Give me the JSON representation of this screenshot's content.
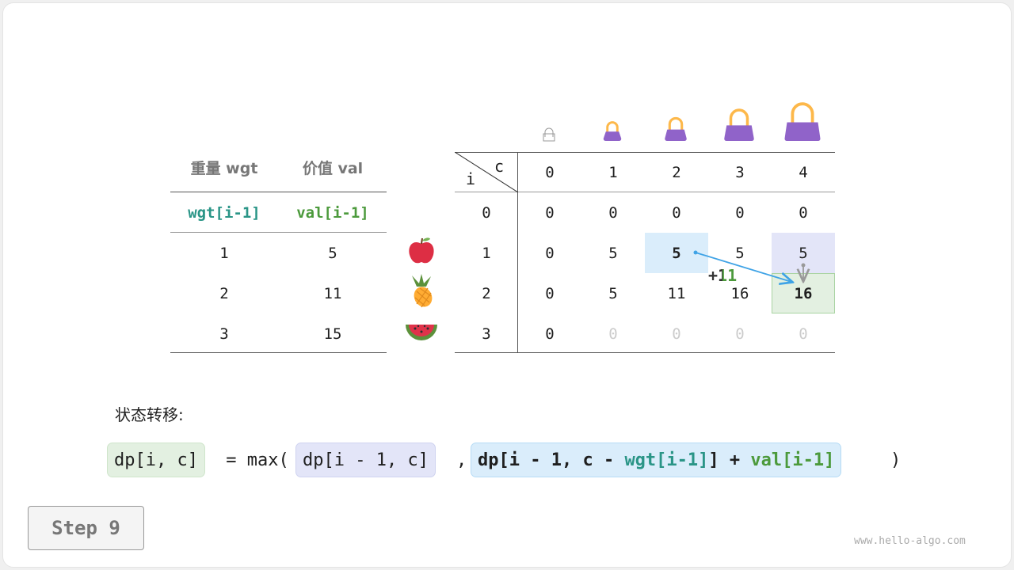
{
  "left_table": {
    "headers": [
      "重量 wgt",
      "价值 val"
    ],
    "subheaders": [
      "wgt[i-1]",
      "val[i-1]"
    ],
    "rows": [
      [
        "1",
        "5"
      ],
      [
        "2",
        "11"
      ],
      [
        "3",
        "15"
      ]
    ]
  },
  "items": [
    {
      "icon": "apple-icon"
    },
    {
      "icon": "pineapple-icon"
    },
    {
      "icon": "watermelon-icon"
    }
  ],
  "dp_table": {
    "corner_row": "i",
    "corner_col": "c",
    "capacities": [
      "0",
      "1",
      "2",
      "3",
      "4"
    ],
    "row_labels": [
      "0",
      "1",
      "2",
      "3"
    ],
    "rows": [
      [
        "0",
        "0",
        "0",
        "0",
        "0"
      ],
      [
        "0",
        "5",
        "5",
        "5",
        "5"
      ],
      [
        "0",
        "5",
        "11",
        "16",
        "16"
      ],
      [
        "0",
        "0",
        "0",
        "0",
        "0"
      ]
    ],
    "filled_rows": 3,
    "row3_filled_cols": 1
  },
  "annotation": "+11",
  "transition_label": "状态转移:",
  "formula": {
    "lhs": "dp[i, c]",
    "eq": " = max(",
    "opt1": "dp[i - 1, c]",
    "comma": ",",
    "opt2_a": "dp[i - 1, c - ",
    "opt2_wgt": "wgt[i-1]",
    "opt2_b": "] + ",
    "opt2_val": "val[i-1]",
    "close": ")"
  },
  "step_button": "Step 9",
  "watermark": "www.hello-algo.com",
  "colors": {
    "teal": "#2a9587",
    "green": "#4c9a3c",
    "blue_highlight": "#daedfb",
    "purple_highlight": "#e3e5f8",
    "green_highlight": "#e3f0e1",
    "arrow": "#3fa3e6",
    "bag": "#9063c9"
  }
}
